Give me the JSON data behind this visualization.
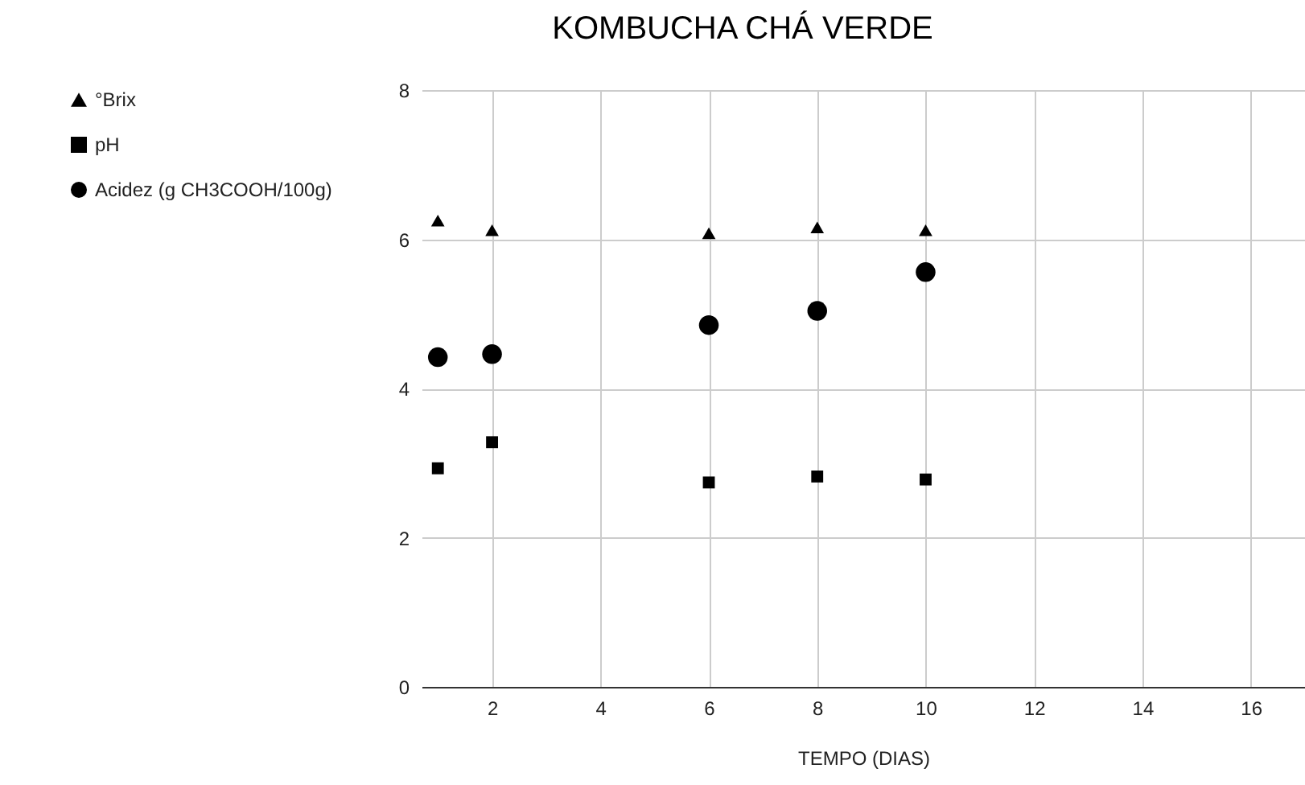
{
  "chart_data": {
    "type": "scatter",
    "title": "KOMBUCHA CHÁ VERDE",
    "xlabel": "TEMPO (DIAS)",
    "x": [
      1,
      2,
      6,
      8,
      10
    ],
    "series": [
      {
        "name": "°Brix",
        "color": "#000000",
        "marker": "triangle",
        "values": [
          6.25,
          6.12,
          6.08,
          6.16,
          6.12
        ]
      },
      {
        "name": "pH",
        "color": "#000000",
        "marker": "square",
        "values": [
          2.93,
          3.28,
          2.74,
          2.82,
          2.78
        ]
      },
      {
        "name": "Acidez (g CH3COOH/100g)",
        "color": "#000000",
        "marker": "circle",
        "values": [
          4.42,
          4.46,
          4.85,
          5.04,
          5.56
        ]
      }
    ],
    "xlim": [
      0.7,
      17
    ],
    "xticks": [
      2,
      4,
      6,
      8,
      10,
      12,
      14,
      16
    ],
    "ylim": [
      0,
      8
    ],
    "yticks": [
      0,
      2,
      4,
      6,
      8
    ],
    "grid": true,
    "legend": "top left"
  }
}
